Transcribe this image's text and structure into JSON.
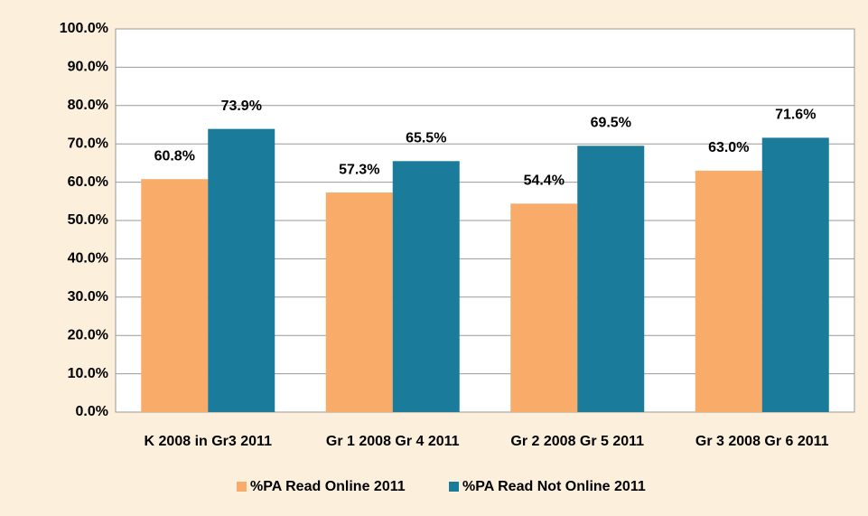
{
  "chart_data": {
    "type": "bar",
    "categories": [
      "K 2008 in Gr3 2011",
      "Gr 1 2008 Gr 4 2011",
      "Gr 2 2008 Gr 5 2011",
      "Gr 3 2008 Gr 6 2011"
    ],
    "series": [
      {
        "name": "%PA Read Online 2011",
        "color": "#f9ab6a",
        "values": [
          60.8,
          57.3,
          54.4,
          63.0
        ],
        "value_labels": [
          "60.8%",
          "57.3%",
          "54.4%",
          "63.0%"
        ]
      },
      {
        "name": "%PA Read Not Online 2011",
        "color": "#1b7b9a",
        "values": [
          73.9,
          65.5,
          69.5,
          71.6
        ],
        "value_labels": [
          "73.9%",
          "65.5%",
          "69.5%",
          "71.6%"
        ]
      }
    ],
    "ylim": [
      0,
      100
    ],
    "yticks": [
      {
        "value": 0,
        "label": "0.0%"
      },
      {
        "value": 10,
        "label": "10.0%"
      },
      {
        "value": 20,
        "label": "20.0%"
      },
      {
        "value": 30,
        "label": "30.0%"
      },
      {
        "value": 40,
        "label": "40.0%"
      },
      {
        "value": 50,
        "label": "50.0%"
      },
      {
        "value": 60,
        "label": "60.0%"
      },
      {
        "value": 70,
        "label": "70.0%"
      },
      {
        "value": 80,
        "label": "80.0%"
      },
      {
        "value": 90,
        "label": "90.0%"
      },
      {
        "value": 100,
        "label": "100.0%"
      }
    ],
    "grid": true,
    "legend": "bottom"
  }
}
